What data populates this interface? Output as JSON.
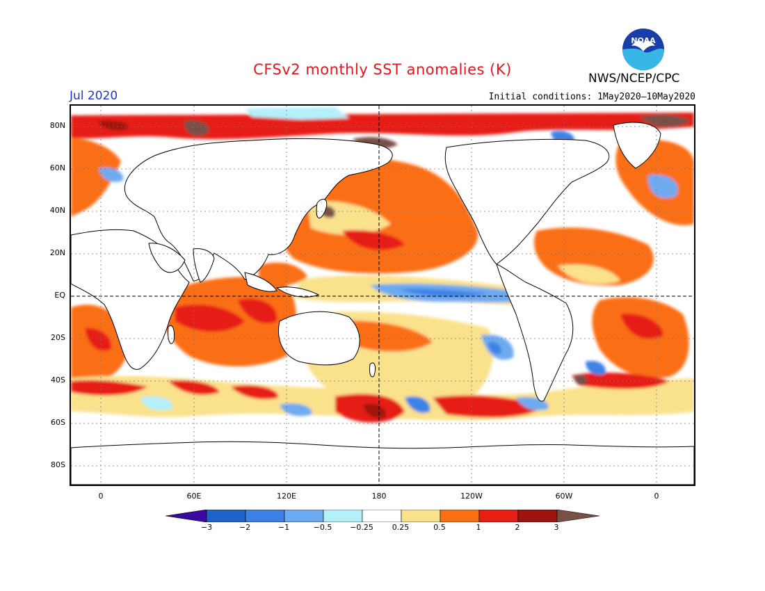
{
  "header": {
    "title": "CFSv2 monthly SST anomalies (K)",
    "agency": "NWS/NCEP/CPC",
    "logo_text": "NOAA",
    "month": "Jul 2020",
    "initial_conditions": "Initial conditions: 1May2020—10May2020"
  },
  "map": {
    "projection": "cylindrical equidistant",
    "lat_range": [
      -90,
      90
    ],
    "lon_range": [
      -15,
      375
    ],
    "y_axis_labels": [
      "80N",
      "60N",
      "40N",
      "20N",
      "EQ",
      "20S",
      "40S",
      "60S",
      "80S"
    ],
    "x_axis_labels": [
      "0",
      "60E",
      "120E",
      "180",
      "120W",
      "60W",
      "0"
    ],
    "grid": "dotted",
    "reference_lines": [
      "Equator",
      "Date line 180"
    ]
  },
  "colorbar": {
    "labels": [
      "−3",
      "−2",
      "−1",
      "−0.5",
      "−0.25",
      "0.25",
      "0.5",
      "1",
      "2",
      "3"
    ],
    "bins": [
      {
        "range": "< -3",
        "color": "#3a0aa0"
      },
      {
        "range": "-3 to -2",
        "color": "#1e64c8"
      },
      {
        "range": "-2 to -1",
        "color": "#3c82e6"
      },
      {
        "range": "-1 to -0.5",
        "color": "#6eaaf0"
      },
      {
        "range": "-0.5 to -0.25",
        "color": "#b4f0fa"
      },
      {
        "range": "-0.25 to 0.25",
        "color": "#ffffff"
      },
      {
        "range": "0.25 to 0.5",
        "color": "#fae18c"
      },
      {
        "range": "0.5 to 1",
        "color": "#fa6e14"
      },
      {
        "range": "1 to 2",
        "color": "#e61e14"
      },
      {
        "range": "2 to 3",
        "color": "#a0140f"
      },
      {
        "range": "> 3",
        "color": "#785046"
      }
    ]
  },
  "anomaly_regions": [
    {
      "region": "Arctic / Barents-Kara Sea",
      "level": "above 3"
    },
    {
      "region": "Chukchi / Bering Strait",
      "level": "above 3"
    },
    {
      "region": "North Pacific",
      "level": "0.5 to 1"
    },
    {
      "region": "Tropical Indian Ocean",
      "level": "0.5 to 2"
    },
    {
      "region": "Maritime Continent",
      "level": "1 to 2"
    },
    {
      "region": "Equatorial central-eastern Pacific",
      "level": "-1 to -0.25"
    },
    {
      "region": "Tropical North Atlantic",
      "level": "0.5 to 1"
    },
    {
      "region": "South Atlantic",
      "level": "0.5 to 2"
    },
    {
      "region": "Southern Ocean south of New Zealand",
      "level": "1 to 3"
    },
    {
      "region": "South Pacific mid-latitudes",
      "level": "-1 to -0.5"
    }
  ]
}
